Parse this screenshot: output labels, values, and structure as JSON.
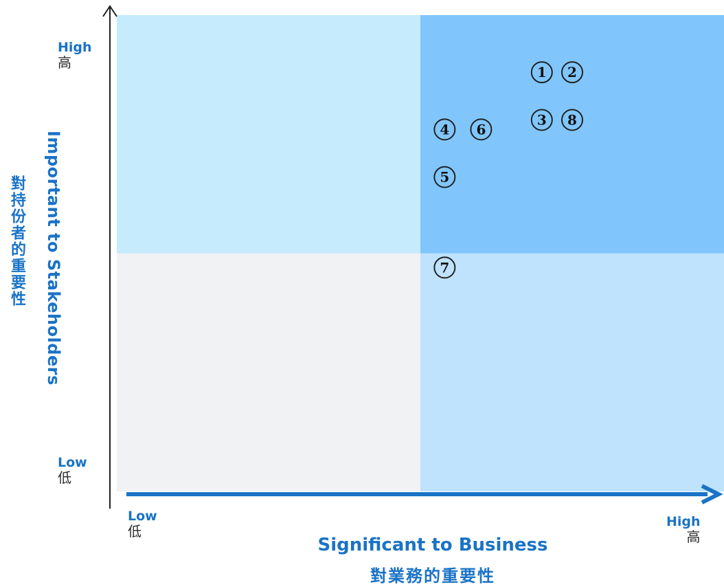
{
  "chart_data": {
    "type": "scatter",
    "xlabel_en": "Significant to Business",
    "xlabel_zh": "對業務的重要性",
    "ylabel_en": "Important to Stakeholders",
    "ylabel_zh": "對持份者的重要性",
    "x_low_en": "Low",
    "x_low_zh": "低",
    "x_high_en": "High",
    "x_high_zh": "高",
    "y_low_en": "Low",
    "y_low_zh": "低",
    "y_high_en": "High",
    "y_high_zh": "高",
    "xlim": [
      0,
      10
    ],
    "ylim": [
      0,
      10
    ],
    "quadrant_split": {
      "x": 5,
      "y": 5
    },
    "quadrant_colors": {
      "top_left": "#c6ebfd",
      "top_right": "#80c6fc",
      "bottom_left": "#f1f2f4",
      "bottom_right": "#bfe2fd"
    },
    "points": [
      {
        "label": "1",
        "x": 7.0,
        "y": 8.8
      },
      {
        "label": "2",
        "x": 7.5,
        "y": 8.8
      },
      {
        "label": "3",
        "x": 7.0,
        "y": 7.8
      },
      {
        "label": "4",
        "x": 5.4,
        "y": 7.6
      },
      {
        "label": "5",
        "x": 5.4,
        "y": 6.6
      },
      {
        "label": "6",
        "x": 6.0,
        "y": 7.6
      },
      {
        "label": "7",
        "x": 5.4,
        "y": 4.7
      },
      {
        "label": "8",
        "x": 7.5,
        "y": 7.8
      }
    ],
    "accent_color": "#1a73c6",
    "grid": false,
    "legend": "none"
  }
}
